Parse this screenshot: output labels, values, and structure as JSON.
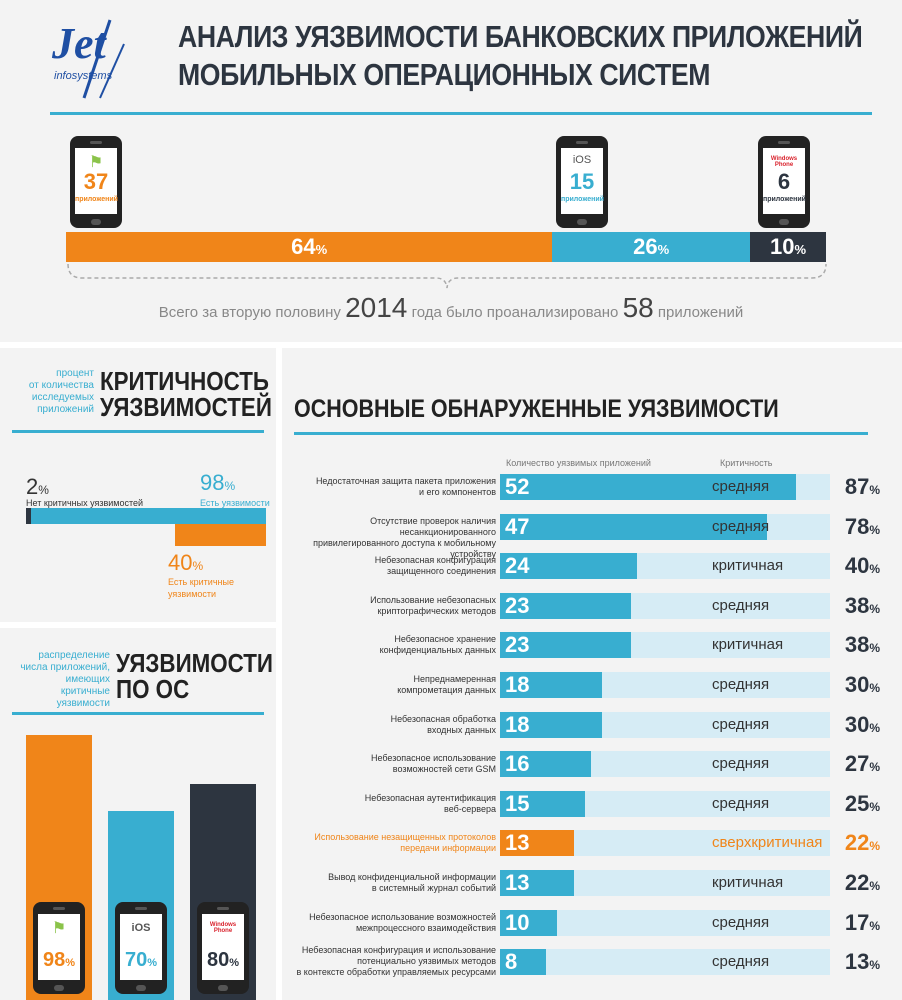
{
  "logo": {
    "text": "Jet",
    "sub": "infosystems"
  },
  "title": {
    "line1": "АНАЛИЗ УЯЗВИМОСТИ БАНКОВСКИХ ПРИЛОЖЕНИЙ",
    "line2": "МОБИЛЬНЫХ ОПЕРАЦИОННЫХ СИСТЕМ"
  },
  "os_phones": [
    {
      "name": "android",
      "count": "37",
      "unit": "приложений",
      "color": "#f08519"
    },
    {
      "name": "iOS",
      "count": "15",
      "unit": "приложений",
      "color": "#38aed0"
    },
    {
      "name": "Windows Phone",
      "count": "6",
      "unit": "приложений",
      "color": "#2d3540"
    }
  ],
  "share_bar": [
    {
      "value": "64",
      "pct": "%",
      "fraction": 0.64,
      "color": "#f08519"
    },
    {
      "value": "26",
      "pct": "%",
      "fraction": 0.26,
      "color": "#38aed0"
    },
    {
      "value": "10",
      "pct": "%",
      "fraction": 0.1,
      "color": "#2d3540"
    }
  ],
  "total_text": {
    "p1": "Всего за вторую половину",
    "year": "2014",
    "p2": "года было проанализировано",
    "n": "58",
    "p3": "приложений"
  },
  "criticality": {
    "title1": "КРИТИЧНОСТЬ",
    "title2": "УЯЗВИМОСТЕЙ",
    "sub1": "процент",
    "sub2": "от количества",
    "sub3": "исследуемых",
    "sub4": "приложений",
    "no_crit_value": "2",
    "no_crit_label": "Нет критичных уязвимостей",
    "has_vuln_value": "98",
    "has_vuln_label": "Есть уязвимости",
    "crit_value": "40",
    "crit_label1": "Есть критичные",
    "crit_label2": "уязвимости",
    "pct": "%"
  },
  "by_os": {
    "title1": "УЯЗВИМОСТИ",
    "title2": "ПО ОС",
    "sub1": "распределение",
    "sub2": "числа приложений,",
    "sub3": "имеющих критичные",
    "sub4": "уязвимости",
    "pct": "%"
  },
  "main_vulns": {
    "title": "ОСНОВНЫЕ ОБНАРУЖЕННЫЕ УЯЗВИМОСТИ",
    "col_count": "Количество уязвимых приложений",
    "col_crit": "Критичность",
    "pct": "%"
  },
  "chart_data": [
    {
      "type": "bar",
      "categories": [
        "android",
        "iOS",
        "Windows Phone"
      ],
      "series": [
        {
          "name": "приложений",
          "values": [
            37,
            15,
            6
          ]
        }
      ],
      "shares_percent": [
        64,
        26,
        10
      ],
      "total": 58
    },
    {
      "type": "bar",
      "categories": [
        "Нет критичных уязвимостей",
        "Есть уязвимости",
        "Есть критичные уязвимости"
      ],
      "values": [
        2,
        98,
        40
      ]
    },
    {
      "type": "bar",
      "categories": [
        "android",
        "iOS",
        "Windows Phone"
      ],
      "values": [
        98,
        70,
        80
      ],
      "ylim": [
        0,
        100
      ]
    },
    {
      "type": "bar",
      "xlim": [
        0,
        58
      ],
      "rows": [
        {
          "l1": "Недостаточная защита пакета приложения",
          "l2": "и его компонентов",
          "count": 52,
          "crit": "средняя",
          "pct": 87,
          "highlight": false
        },
        {
          "l1": "Отсутствие проверок наличия несанкционированного",
          "l2": "привилегированного доступа к мобильному устройству",
          "count": 47,
          "crit": "средняя",
          "pct": 78,
          "highlight": false
        },
        {
          "l1": "Небезопасная конфигурация",
          "l2": "защищенного соединения",
          "count": 24,
          "crit": "критичная",
          "pct": 40,
          "highlight": false
        },
        {
          "l1": "Использование небезопасных",
          "l2": "криптографических методов",
          "count": 23,
          "crit": "средняя",
          "pct": 38,
          "highlight": false
        },
        {
          "l1": "Небезопасное хранение",
          "l2": "конфиденциальных данных",
          "count": 23,
          "crit": "критичная",
          "pct": 38,
          "highlight": false
        },
        {
          "l1": "Непреднамеренная",
          "l2": "компрометация данных",
          "count": 18,
          "crit": "средняя",
          "pct": 30,
          "highlight": false
        },
        {
          "l1": "Небезопасная обработка",
          "l2": "входных данных",
          "count": 18,
          "crit": "средняя",
          "pct": 30,
          "highlight": false
        },
        {
          "l1": "Небезопасное использование",
          "l2": "возможностей сети GSM",
          "count": 16,
          "crit": "средняя",
          "pct": 27,
          "highlight": false
        },
        {
          "l1": "Небезопасная аутентификация",
          "l2": "веб-сервера",
          "count": 15,
          "crit": "средняя",
          "pct": 25,
          "highlight": false
        },
        {
          "l1": "Использование незащищенных протоколов",
          "l2": "передачи информации",
          "count": 13,
          "crit": "сверхкритичная",
          "pct": 22,
          "highlight": true
        },
        {
          "l1": "Вывод конфиденциальной информации",
          "l2": "в системный журнал событий",
          "count": 13,
          "crit": "критичная",
          "pct": 22,
          "highlight": false
        },
        {
          "l1": "Небезопасное использование возможностей",
          "l2": "межпроцессного взаимодействия",
          "count": 10,
          "crit": "средняя",
          "pct": 17,
          "highlight": false
        },
        {
          "l1": "Небезопасная конфигурация и использование",
          "l2": "потенциально уязвимых методов",
          "l3": "в контексте обработки управляемых ресурсами",
          "count": 8,
          "crit": "средняя",
          "pct": 13,
          "highlight": false
        }
      ]
    }
  ],
  "colors": {
    "orange": "#f08519",
    "blue": "#38aed0",
    "dark": "#2d3540",
    "light_blue": "#d6ecf5"
  }
}
